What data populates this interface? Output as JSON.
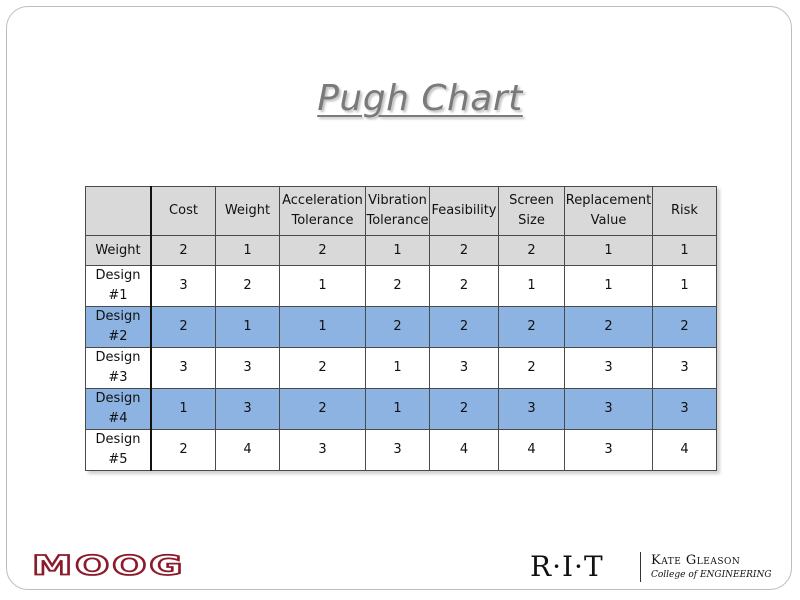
{
  "title": "Pugh Chart",
  "table": {
    "headers": [
      "Cost",
      "Weight",
      "Acceleration Tolerance",
      "Vibration Tolerance",
      "Feasibility",
      "Screen Size",
      "Replacement Value",
      "Risk"
    ],
    "weight_row": {
      "label": "Weight",
      "values": [
        "2",
        "1",
        "2",
        "1",
        "2",
        "2",
        "1",
        "1"
      ]
    },
    "rows": [
      {
        "label": "Design #1",
        "values": [
          "3",
          "2",
          "1",
          "2",
          "2",
          "1",
          "1",
          "1"
        ],
        "highlight": false
      },
      {
        "label": "Design #2",
        "values": [
          "2",
          "1",
          "1",
          "2",
          "2",
          "2",
          "2",
          "2"
        ],
        "highlight": true
      },
      {
        "label": "Design #3",
        "values": [
          "3",
          "3",
          "2",
          "1",
          "3",
          "2",
          "3",
          "3"
        ],
        "highlight": false
      },
      {
        "label": "Design #4",
        "values": [
          "1",
          "3",
          "2",
          "1",
          "2",
          "3",
          "3",
          "3"
        ],
        "highlight": true
      },
      {
        "label": "Design #5",
        "values": [
          "2",
          "4",
          "3",
          "3",
          "4",
          "4",
          "3",
          "4"
        ],
        "highlight": false
      }
    ]
  },
  "colors": {
    "highlight": "#8db3e2",
    "header_bg": "#d9d9d9",
    "moog_brand": "#8b1a2b"
  },
  "logos": {
    "moog": "MOOG",
    "rit": "R·I·T",
    "kate_gleason": "Kate Gleason",
    "college": "College of ENGINEERING"
  }
}
